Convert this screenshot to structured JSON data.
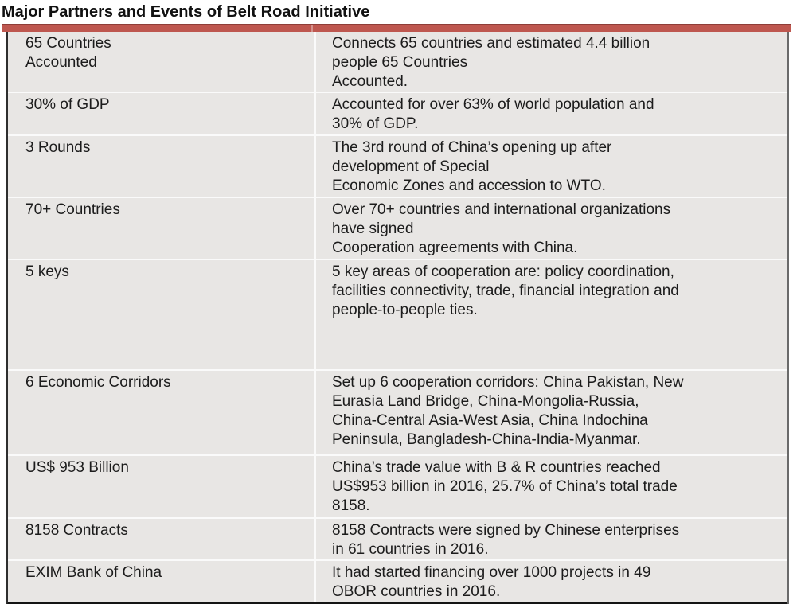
{
  "title": "Major Partners and Events of Belt Road Initiative",
  "colors": {
    "accent_bar": "#BE574F",
    "accent_bar_top_edge": "#8E3D38",
    "table_background": "#E8E6E4",
    "bottom_border": "#141414",
    "text": "#1c1c1c"
  },
  "table": {
    "rows": [
      {
        "label": "65 Countries\nAccounted",
        "description": "Connects 65 countries and estimated 4.4 billion\npeople 65 Countries\nAccounted."
      },
      {
        "label": "30% of GDP",
        "description": "Accounted for over 63% of world population and\n30% of GDP."
      },
      {
        "label": "3 Rounds",
        "description": "The 3rd round of China’s opening up after\ndevelopment of Special\nEconomic Zones and accession to WTO."
      },
      {
        "label": "70+ Countries",
        "description": "Over 70+ countries and international organizations\nhave signed\nCooperation agreements with China."
      },
      {
        "label": "5 keys",
        "description": "5 key areas of cooperation are: policy coordination,\nfacilities connectivity, trade, financial integration and\npeople-to-people ties."
      },
      {
        "label": "6 Economic Corridors",
        "description": "Set up 6 cooperation corridors: China Pakistan, New\nEurasia Land Bridge, China-Mongolia-Russia,\nChina-Central Asia-West Asia, China Indochina\nPeninsula, Bangladesh-China-India-Myanmar."
      },
      {
        "label": "US$ 953 Billion",
        "description": "China’s trade value with B & R countries reached\nUS$953 billion in 2016, 25.7% of China’s total trade\n8158."
      },
      {
        "label": "8158 Contracts",
        "description": "8158 Contracts were signed by Chinese enterprises\nin 61 countries in 2016."
      },
      {
        "label": "EXIM Bank of China",
        "description": "It had started financing over 1000 projects in 49\nOBOR countries in 2016."
      }
    ]
  }
}
